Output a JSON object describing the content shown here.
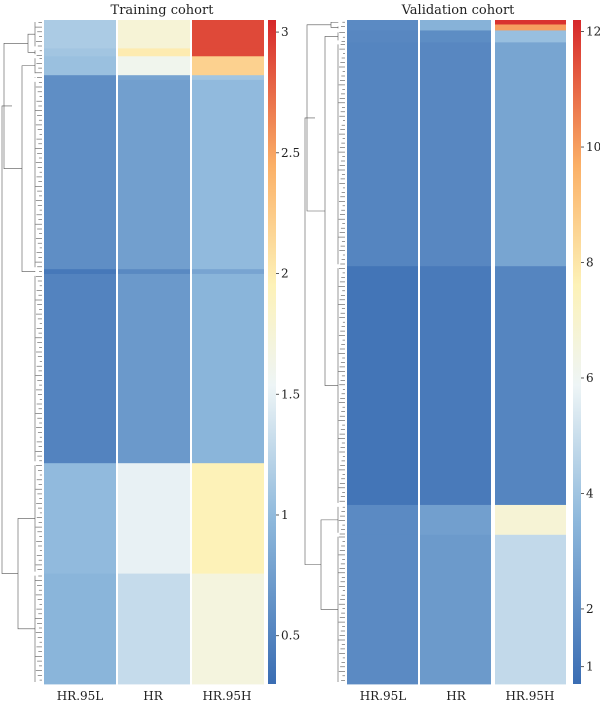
{
  "chart_data": [
    {
      "type": "heatmap",
      "title": "Training cohort",
      "columns": [
        "HR.95L",
        "HR",
        "HR.95H"
      ],
      "colorbar": {
        "min": 0.3,
        "max": 3.05,
        "ticks": [
          0.5,
          1,
          1.5,
          2,
          2.5,
          3
        ],
        "colormap": "blue-white-yellow-red"
      },
      "row_groups": [
        {
          "rows": 18,
          "values": [
            1.15,
            1.75,
            2.9
          ]
        },
        {
          "rows": 5,
          "values": [
            1.1,
            2.0,
            2.9
          ]
        },
        {
          "rows": 12,
          "values": [
            1.05,
            1.6,
            2.2
          ]
        },
        {
          "rows": 3,
          "values": [
            0.6,
            0.8,
            1.1
          ]
        },
        {
          "rows": 120,
          "values": [
            0.6,
            0.75,
            1.0
          ]
        },
        {
          "rows": 3,
          "values": [
            0.4,
            0.55,
            0.8
          ]
        },
        {
          "rows": 120,
          "values": [
            0.5,
            0.7,
            0.95
          ]
        },
        {
          "rows": 70,
          "values": [
            1.0,
            1.5,
            1.95
          ]
        },
        {
          "rows": 70,
          "values": [
            0.95,
            1.3,
            1.7
          ]
        }
      ]
    },
    {
      "type": "heatmap",
      "title": "Validation cohort",
      "columns": [
        "HR.95L",
        "HR",
        "HR.95H"
      ],
      "colorbar": {
        "min": 0.7,
        "max": 12.2,
        "ticks": [
          1,
          2,
          4,
          6,
          8,
          10,
          12
        ],
        "colormap": "blue-white-yellow-red"
      },
      "row_groups": [
        {
          "rows": 3,
          "values": [
            1.8,
            3.3,
            12.0
          ]
        },
        {
          "rows": 4,
          "values": [
            1.8,
            3.3,
            10.0
          ]
        },
        {
          "rows": 8,
          "values": [
            1.7,
            1.9,
            3.8
          ]
        },
        {
          "rows": 150,
          "values": [
            1.6,
            1.7,
            2.8
          ]
        },
        {
          "rows": 160,
          "values": [
            1.0,
            1.2,
            1.6
          ]
        },
        {
          "rows": 20,
          "values": [
            1.8,
            2.6,
            6.8
          ]
        },
        {
          "rows": 100,
          "values": [
            1.8,
            2.4,
            4.8
          ]
        }
      ]
    }
  ]
}
